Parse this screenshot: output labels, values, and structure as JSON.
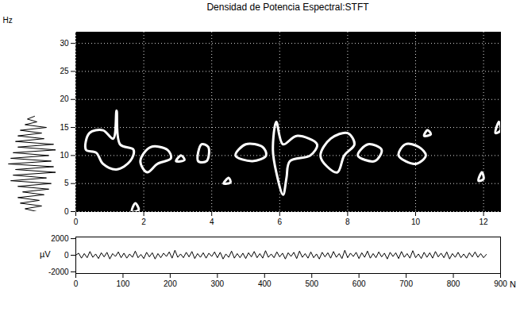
{
  "chart_data": [
    {
      "type": "contour",
      "title": "Densidad de Potencia Espectral:STFT",
      "y_label": "Hz",
      "xlim": [
        0,
        12.5
      ],
      "xticks": [
        0,
        2,
        4,
        6,
        8,
        10,
        12
      ],
      "ylim": [
        0,
        32
      ],
      "yticks": [
        0,
        5,
        10,
        15,
        20,
        25,
        30
      ],
      "grid": true,
      "color": "#ffffff",
      "contours": [
        [
          [
            0.3,
            11
          ],
          [
            0.4,
            14
          ],
          [
            0.8,
            14.5
          ],
          [
            1.1,
            13
          ],
          [
            1.2,
            18
          ],
          [
            1.3,
            12
          ],
          [
            1.7,
            11
          ],
          [
            1.6,
            9
          ],
          [
            1.2,
            7.5
          ],
          [
            0.8,
            8.5
          ],
          [
            0.6,
            10.5
          ]
        ],
        [
          [
            1.9,
            9
          ],
          [
            2.2,
            11.5
          ],
          [
            2.7,
            11
          ],
          [
            2.8,
            9.5
          ],
          [
            2.4,
            8.5
          ],
          [
            2.1,
            7
          ]
        ],
        [
          [
            2.95,
            9
          ],
          [
            3.1,
            10
          ],
          [
            3.2,
            9.2
          ]
        ],
        [
          [
            3.6,
            9
          ],
          [
            3.7,
            12
          ],
          [
            3.9,
            11.5
          ],
          [
            3.85,
            9
          ]
        ],
        [
          [
            4.35,
            5
          ],
          [
            4.5,
            6
          ],
          [
            4.55,
            5.2
          ]
        ],
        [
          [
            4.7,
            10
          ],
          [
            5.0,
            12
          ],
          [
            5.5,
            11.5
          ],
          [
            5.6,
            10
          ],
          [
            5.2,
            9
          ]
        ],
        [
          [
            5.8,
            11
          ],
          [
            5.9,
            16
          ],
          [
            6.1,
            12
          ],
          [
            6.5,
            13.5
          ],
          [
            7.1,
            12
          ],
          [
            6.9,
            10
          ],
          [
            6.3,
            9
          ],
          [
            6.2,
            6
          ],
          [
            6.1,
            3
          ],
          [
            5.9,
            7
          ]
        ],
        [
          [
            7.2,
            10
          ],
          [
            7.5,
            13
          ],
          [
            8.0,
            14
          ],
          [
            8.2,
            12
          ],
          [
            7.9,
            10
          ],
          [
            7.7,
            7
          ],
          [
            7.4,
            8
          ]
        ],
        [
          [
            8.3,
            10
          ],
          [
            8.6,
            12
          ],
          [
            9.0,
            11
          ],
          [
            8.8,
            9
          ]
        ],
        [
          [
            9.5,
            10
          ],
          [
            9.7,
            12
          ],
          [
            10.1,
            11.5
          ],
          [
            10.3,
            10
          ],
          [
            10.0,
            8.5
          ]
        ],
        [
          [
            10.25,
            13.5
          ],
          [
            10.35,
            14.5
          ],
          [
            10.45,
            13.8
          ]
        ],
        [
          [
            12.35,
            14
          ],
          [
            12.45,
            16
          ],
          [
            12.5,
            14.5
          ]
        ],
        [
          [
            11.85,
            5.5
          ],
          [
            11.95,
            7
          ],
          [
            12.0,
            5.8
          ]
        ],
        [
          [
            1.65,
            0
          ],
          [
            1.75,
            1.5
          ],
          [
            1.85,
            0.3
          ]
        ]
      ],
      "spectrum": {
        "freq": [
          0,
          0.5,
          1,
          1.5,
          2,
          2.5,
          3,
          3.5,
          4,
          4.5,
          5,
          5.5,
          6,
          6.5,
          7,
          7.5,
          8,
          8.5,
          9,
          9.5,
          10,
          10.5,
          11,
          11.5,
          12,
          12.5,
          13,
          13.5,
          14,
          14.5,
          15,
          15.5,
          16,
          16.5,
          17
        ],
        "amplitude": [
          0.2,
          -0.3,
          0.4,
          -0.5,
          0.3,
          -0.6,
          0.5,
          -0.4,
          0.7,
          -0.6,
          0.8,
          -0.9,
          0.6,
          -0.8,
          1.0,
          -0.7,
          0.9,
          -1.0,
          0.8,
          -0.9,
          0.7,
          -0.8,
          1.0,
          -0.6,
          0.9,
          -0.7,
          0.5,
          -0.6,
          0.4,
          -0.5,
          0.6,
          -0.3,
          0.2,
          -0.2,
          0.1
        ]
      }
    },
    {
      "type": "line",
      "y_label": "µV",
      "x_label": "N",
      "xlim": [
        0,
        900
      ],
      "xticks": [
        0,
        100,
        200,
        300,
        400,
        500,
        600,
        700,
        800,
        900
      ],
      "ylim": [
        -2200,
        2200
      ],
      "yticks": [
        -2000,
        0,
        2000
      ],
      "grid": false,
      "color": "#000000",
      "x": [
        0,
        6,
        12,
        18,
        24,
        30,
        36,
        42,
        48,
        54,
        60,
        66,
        72,
        78,
        84,
        90,
        96,
        102,
        108,
        114,
        120,
        126,
        132,
        138,
        144,
        150,
        156,
        162,
        168,
        174,
        180,
        186,
        192,
        198,
        204,
        210,
        216,
        222,
        228,
        234,
        240,
        246,
        252,
        258,
        264,
        270,
        276,
        282,
        288,
        294,
        300,
        306,
        312,
        318,
        324,
        330,
        336,
        342,
        348,
        354,
        360,
        366,
        372,
        378,
        384,
        390,
        396,
        402,
        408,
        414,
        420,
        426,
        432,
        438,
        444,
        450,
        456,
        462,
        468,
        474,
        480,
        486,
        492,
        498,
        504,
        510,
        516,
        522,
        528,
        534,
        540,
        546,
        552,
        558,
        564,
        570,
        576,
        582,
        588,
        594,
        600,
        606,
        612,
        618,
        624,
        630,
        636,
        642,
        648,
        654,
        660,
        666,
        672,
        678,
        684,
        690,
        696,
        702,
        708,
        714,
        720,
        726,
        732,
        738,
        744,
        750,
        756,
        762,
        768,
        774,
        780,
        786,
        792,
        798,
        804,
        810,
        816,
        822,
        828,
        834,
        840,
        846,
        852,
        858,
        864,
        870
      ],
      "values": [
        0,
        250,
        -350,
        200,
        -300,
        450,
        -250,
        150,
        -400,
        300,
        -200,
        350,
        -450,
        200,
        -150,
        400,
        -300,
        250,
        -350,
        150,
        -250,
        500,
        -300,
        100,
        -400,
        350,
        -200,
        300,
        -450,
        200,
        -300,
        250,
        -150,
        400,
        -350,
        600,
        -250,
        150,
        -300,
        350,
        -200,
        450,
        -400,
        200,
        -250,
        300,
        -350,
        250,
        -150,
        400,
        -300,
        350,
        -450,
        150,
        -250,
        500,
        -350,
        200,
        -300,
        250,
        -400,
        300,
        -200,
        450,
        -300,
        200,
        -350,
        550,
        -250,
        150,
        -300,
        400,
        -200,
        250,
        -450,
        300,
        -150,
        350,
        -400,
        500,
        -250,
        200,
        -350,
        400,
        -300,
        150,
        -450,
        350,
        -200,
        300,
        -350,
        450,
        -250,
        200,
        -400,
        600,
        -300,
        250,
        -150,
        350,
        -400,
        300,
        -250,
        500,
        -350,
        200,
        -300,
        400,
        -200,
        250,
        -450,
        350,
        -150,
        300,
        -400,
        450,
        -250,
        200,
        -350,
        550,
        -300,
        150,
        -400,
        350,
        -250,
        300,
        -350,
        450,
        -200,
        250,
        -300,
        400,
        -450,
        200,
        -250,
        350,
        -300,
        150,
        -350,
        300,
        -200,
        400,
        -250,
        200,
        -300,
        100
      ]
    }
  ]
}
